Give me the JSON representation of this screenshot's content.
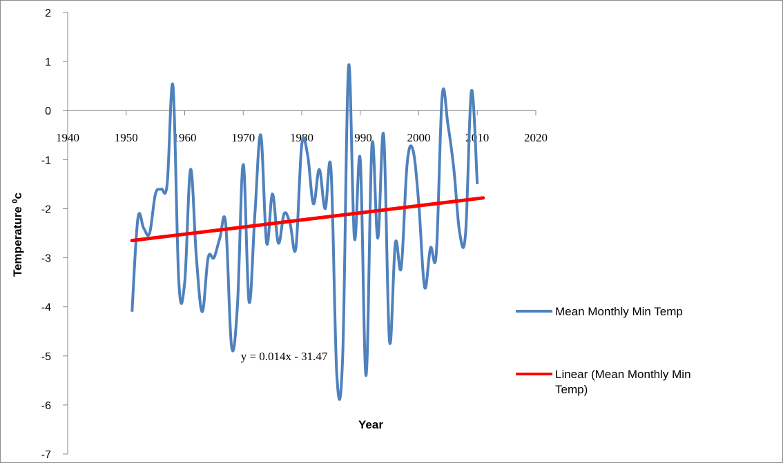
{
  "chart_data": {
    "type": "line",
    "xlabel": "Year",
    "ylabel": "Temperature",
    "ylabel_sup": "0",
    "ylabel_suffix": "c",
    "xlim": [
      1940,
      2020
    ],
    "ylim": [
      -7,
      2
    ],
    "x_ticks": [
      1940,
      1950,
      1960,
      1970,
      1980,
      1990,
      2000,
      2010,
      2020
    ],
    "y_ticks": [
      2,
      1,
      0,
      -1,
      -2,
      -3,
      -4,
      -5,
      -6,
      -7
    ],
    "grid": false,
    "legend_position": "right",
    "series": [
      {
        "name": "Mean Monthly Min Temp",
        "color": "#4f81bd",
        "x": [
          1951,
          1952,
          1953,
          1954,
          1955,
          1956,
          1957,
          1958,
          1959,
          1960,
          1961,
          1962,
          1963,
          1964,
          1965,
          1966,
          1967,
          1968,
          1969,
          1970,
          1971,
          1972,
          1973,
          1974,
          1975,
          1976,
          1977,
          1978,
          1979,
          1980,
          1981,
          1982,
          1983,
          1984,
          1985,
          1986,
          1987,
          1988,
          1989,
          1990,
          1991,
          1992,
          1993,
          1994,
          1995,
          1996,
          1997,
          1998,
          1999,
          2000,
          2001,
          2002,
          2003,
          2004,
          2005,
          2006,
          2007,
          2008,
          2009,
          2010
        ],
        "values": [
          -4.1,
          -2.2,
          -2.4,
          -2.5,
          -1.7,
          -1.6,
          -1.5,
          0.5,
          -3.5,
          -3.5,
          -1.2,
          -3.0,
          -4.1,
          -3.0,
          -3.0,
          -2.6,
          -2.3,
          -4.8,
          -4.0,
          -1.1,
          -3.9,
          -2.1,
          -0.5,
          -2.7,
          -1.7,
          -2.7,
          -2.1,
          -2.3,
          -2.8,
          -0.7,
          -0.9,
          -1.9,
          -1.2,
          -2.0,
          -1.2,
          -5.4,
          -5.0,
          0.9,
          -2.6,
          -1.0,
          -5.4,
          -0.7,
          -2.6,
          -0.5,
          -4.7,
          -2.7,
          -3.2,
          -1.1,
          -0.8,
          -1.9,
          -3.6,
          -2.8,
          -2.9,
          0.3,
          -0.3,
          -1.2,
          -2.5,
          -2.5,
          0.4,
          -1.5
        ]
      },
      {
        "name": "Linear (Mean Monthly Min Temp)",
        "color": "#ff0000",
        "type": "trendline",
        "x": [
          1951,
          2011
        ],
        "values": [
          -2.65,
          -1.78
        ]
      }
    ],
    "annotations": [
      {
        "text": "y = 0.014x - 31.47",
        "x": 1977,
        "y": -5.0
      }
    ]
  }
}
